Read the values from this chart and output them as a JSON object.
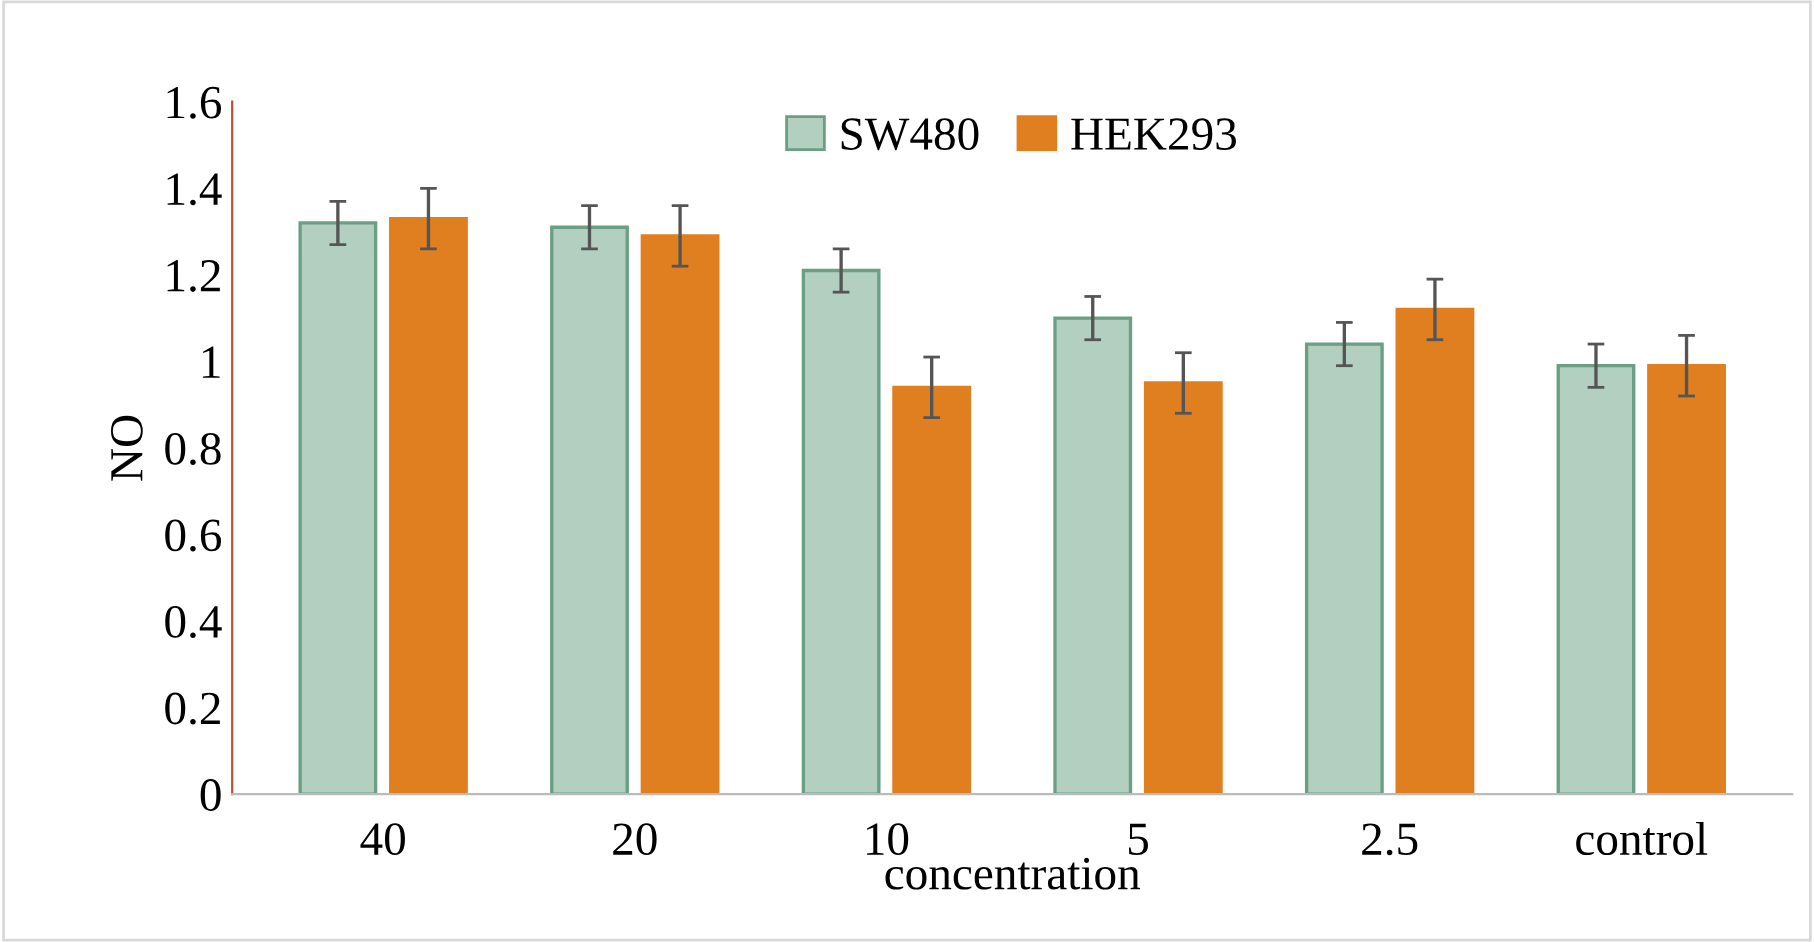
{
  "chart_data": {
    "type": "bar",
    "xlabel": "concentration",
    "ylabel": "NO",
    "categories": [
      "40",
      "20",
      "10",
      "5",
      "2.5",
      "control"
    ],
    "series": [
      {
        "name": "SW480",
        "color": "#b3cfc0",
        "values": [
          1.32,
          1.31,
          1.21,
          1.1,
          1.04,
          0.99
        ],
        "errors": [
          0.05,
          0.05,
          0.05,
          0.05,
          0.05,
          0.05
        ]
      },
      {
        "name": "HEK293",
        "color": "#e07f1f",
        "values": [
          1.33,
          1.29,
          0.94,
          0.95,
          1.12,
          0.99
        ],
        "errors": [
          0.07,
          0.07,
          0.07,
          0.07,
          0.07,
          0.07
        ]
      }
    ],
    "ylim": [
      0,
      1.6
    ],
    "yticks": [
      0,
      0.2,
      0.4,
      0.6,
      0.8,
      1,
      1.2,
      1.4,
      1.6
    ],
    "grid": false,
    "legend": "top"
  }
}
